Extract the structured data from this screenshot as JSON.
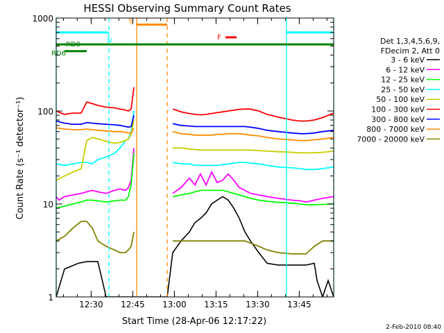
{
  "chart_data": {
    "type": "line",
    "title": "HESSI Observing Summary Count Rates",
    "xlabel": "Start Time (28-Apr-06 12:17:22)",
    "ylabel": "Count Rate (s⁻¹ detector⁻¹)",
    "x_unit": "minutes after 12:17:22",
    "xlim": [
      0,
      100
    ],
    "ylim": [
      1,
      1000
    ],
    "y_scale": "log",
    "x_ticks": [
      {
        "x": 12.6,
        "label": "12:30"
      },
      {
        "x": 27.6,
        "label": "12:45"
      },
      {
        "x": 42.6,
        "label": "13:00"
      },
      {
        "x": 57.6,
        "label": "13:15"
      },
      {
        "x": 72.6,
        "label": "13:30"
      },
      {
        "x": 87.6,
        "label": "13:45"
      }
    ],
    "y_ticks": [
      {
        "y": 1,
        "label": "1"
      },
      {
        "y": 10,
        "label": "10"
      },
      {
        "y": 100,
        "label": "100"
      },
      {
        "y": 1000,
        "label": "1000"
      }
    ],
    "legend_header": [
      "Det 1,3,4,5,6,9,",
      "FDecim 2, Att 0"
    ],
    "legend_position": "right",
    "series": [
      {
        "name": "3 - 6 keV",
        "color": "#000000",
        "x": [
          0,
          3,
          8,
          11,
          13,
          15,
          18,
          21,
          23,
          25,
          26,
          27,
          28,
          29,
          34,
          37,
          40,
          42,
          45,
          48,
          50,
          52,
          54,
          56,
          58,
          60,
          62,
          64,
          66,
          68,
          70,
          73,
          76,
          80,
          85,
          88,
          90,
          93,
          94,
          96,
          98,
          100
        ],
        "y": [
          1,
          2,
          2.3,
          2.4,
          2.4,
          2.4,
          1,
          1,
          1,
          1,
          1,
          1,
          1,
          1,
          1,
          1,
          1,
          3,
          4,
          5,
          6.3,
          7,
          8,
          10,
          11,
          12,
          11,
          9,
          7,
          5,
          4,
          3,
          2.3,
          2.2,
          2.2,
          2.2,
          2.2,
          2.3,
          1.5,
          1,
          1.5,
          1
        ]
      },
      {
        "name": "6 - 12 keV",
        "color": "#ff00ff",
        "x": [
          0,
          1,
          3,
          6,
          9,
          11,
          13,
          15,
          18,
          21,
          23,
          25,
          26,
          27,
          28,
          29,
          34,
          37,
          40,
          42,
          45,
          48,
          50,
          52,
          54,
          56,
          58,
          60,
          62,
          64,
          66,
          68,
          70,
          73,
          76,
          80,
          85,
          88,
          90,
          93,
          96,
          100
        ],
        "y": [
          12,
          11,
          12,
          12.5,
          13,
          13.5,
          14,
          13.5,
          13,
          14,
          14.5,
          14,
          15,
          18,
          40,
          0,
          0,
          0,
          0,
          13,
          15,
          19,
          16,
          21,
          16,
          22,
          17,
          18,
          21,
          18,
          15,
          14,
          13,
          12.5,
          12,
          11.5,
          11,
          10.8,
          10.5,
          11,
          11.5,
          12
        ]
      },
      {
        "name": "12 - 25 keV",
        "color": "#00ff00",
        "x": [
          0,
          3,
          6,
          9,
          11,
          13,
          15,
          18,
          21,
          23,
          25,
          26,
          27,
          28,
          29,
          34,
          37,
          40,
          42,
          45,
          48,
          50,
          52,
          54,
          56,
          58,
          60,
          62,
          64,
          66,
          68,
          70,
          73,
          76,
          80,
          85,
          88,
          90,
          93,
          96,
          100
        ],
        "y": [
          9,
          9.5,
          10,
          10.5,
          11,
          11,
          10.8,
          10.5,
          10.8,
          11,
          11,
          12,
          16,
          35,
          0,
          0,
          0,
          0,
          12,
          12.5,
          13,
          13.5,
          14,
          14,
          14,
          14,
          14,
          13.5,
          13,
          12.5,
          12,
          11.5,
          11,
          10.7,
          10.4,
          10.2,
          10,
          9.8,
          9.8,
          9.9,
          10
        ]
      },
      {
        "name": "25 - 50 keV",
        "color": "#00ffff",
        "x": [
          0,
          3,
          6,
          9,
          11,
          13,
          15,
          18,
          21,
          23,
          25,
          26,
          27,
          28,
          29,
          34,
          37,
          40,
          42,
          45,
          48,
          50,
          52,
          54,
          56,
          58,
          60,
          62,
          64,
          66,
          68,
          70,
          73,
          76,
          80,
          85,
          88,
          90,
          93,
          96,
          100
        ],
        "y": [
          27,
          26,
          27,
          28,
          28,
          27,
          30,
          32,
          35,
          40,
          48,
          50,
          60,
          100,
          0,
          0,
          0,
          0,
          28,
          27,
          27,
          26,
          26,
          26,
          26,
          26,
          26.5,
          27,
          27.5,
          28,
          28,
          27.5,
          27,
          26,
          25,
          24.5,
          24,
          23.5,
          23.5,
          24,
          25
        ]
      },
      {
        "name": "50 - 100 keV",
        "color": "#cccc00",
        "x": [
          0,
          3,
          6,
          9,
          11,
          13,
          15,
          18,
          21,
          23,
          25,
          26,
          27,
          28,
          29,
          34,
          37,
          40,
          42,
          45,
          48,
          50,
          52,
          54,
          56,
          58,
          60,
          62,
          64,
          66,
          68,
          70,
          73,
          76,
          80,
          85,
          88,
          90,
          93,
          96,
          100
        ],
        "y": [
          18,
          20,
          22,
          24,
          48,
          52,
          50,
          47,
          45,
          46,
          48,
          50,
          56,
          80,
          0,
          0,
          0,
          0,
          40,
          40,
          39,
          38.5,
          38,
          38,
          38,
          38,
          38,
          38,
          38,
          38,
          38,
          38,
          37.5,
          37,
          36.5,
          36,
          35.5,
          35.5,
          35.5,
          36,
          37
        ]
      },
      {
        "name": "100 - 300 keV",
        "color": "#ff0000",
        "x": [
          0,
          3,
          6,
          9,
          11,
          13,
          15,
          18,
          21,
          23,
          25,
          26,
          27,
          28,
          29,
          34,
          37,
          40,
          42,
          45,
          48,
          50,
          52,
          54,
          56,
          58,
          60,
          62,
          64,
          66,
          68,
          70,
          73,
          76,
          80,
          85,
          88,
          90,
          93,
          96,
          100
        ],
        "y": [
          100,
          92,
          95,
          95,
          125,
          120,
          115,
          110,
          108,
          105,
          102,
          100,
          105,
          180,
          0,
          0,
          0,
          0,
          105,
          98,
          94,
          92,
          91,
          92,
          94,
          96,
          98,
          100,
          102,
          104,
          105,
          105,
          100,
          92,
          86,
          80,
          78,
          78,
          80,
          85,
          95
        ]
      },
      {
        "name": "300 - 800 keV",
        "color": "#0000ff",
        "x": [
          0,
          3,
          6,
          9,
          11,
          13,
          15,
          18,
          21,
          23,
          25,
          26,
          27,
          28,
          29,
          34,
          37,
          40,
          42,
          45,
          48,
          50,
          52,
          54,
          56,
          58,
          60,
          62,
          64,
          66,
          68,
          70,
          73,
          76,
          80,
          85,
          88,
          90,
          93,
          96,
          100
        ],
        "y": [
          78,
          74,
          72,
          72,
          75,
          74,
          73,
          72,
          71,
          70,
          68,
          67,
          68,
          90,
          0,
          0,
          0,
          0,
          73,
          70,
          69,
          68,
          68,
          68,
          68,
          68,
          68,
          68,
          68,
          68,
          68,
          67,
          65,
          62,
          60,
          58,
          57,
          57,
          58,
          60,
          62
        ]
      },
      {
        "name": "800 - 7000 keV",
        "color": "#ff8c00",
        "x": [
          0,
          3,
          6,
          9,
          11,
          13,
          15,
          18,
          21,
          23,
          25,
          26,
          27,
          28,
          29,
          34,
          37,
          40,
          42,
          45,
          48,
          50,
          52,
          54,
          56,
          58,
          60,
          62,
          64,
          66,
          68,
          70,
          73,
          76,
          80,
          85,
          88,
          90,
          93,
          96,
          100
        ],
        "y": [
          66,
          64,
          63,
          63,
          64,
          63,
          62,
          61,
          60,
          60,
          59,
          58,
          58,
          65,
          0,
          0,
          0,
          0,
          60,
          57,
          56,
          55,
          55,
          55,
          55,
          56,
          56,
          57,
          57,
          57,
          56,
          55,
          54,
          52,
          50,
          49,
          48,
          48,
          49,
          50,
          52
        ]
      },
      {
        "name": "7000 - 20000 keV",
        "color": "#808000",
        "x": [
          0,
          3,
          6,
          9,
          11,
          13,
          15,
          18,
          21,
          23,
          25,
          26,
          27,
          28,
          29,
          34,
          37,
          40,
          42,
          45,
          48,
          50,
          52,
          54,
          56,
          58,
          60,
          62,
          64,
          66,
          68,
          70,
          73,
          76,
          80,
          85,
          88,
          90,
          93,
          96,
          100
        ],
        "y": [
          4,
          4.5,
          5.5,
          6.5,
          6.5,
          5.5,
          4,
          3.5,
          3.2,
          3,
          3,
          3.2,
          3.5,
          5,
          0,
          0,
          0,
          0,
          4,
          4,
          4,
          4,
          4,
          4,
          4,
          4,
          4,
          4,
          4,
          4,
          4,
          3.8,
          3.5,
          3.2,
          3,
          2.9,
          2.9,
          2.9,
          3.5,
          4,
          4
        ]
      }
    ],
    "annotations": [
      {
        "label": "N",
        "color": "#00ffff",
        "x_start": 0,
        "x_end": 19,
        "y": 700
      },
      {
        "label": "",
        "color": "#00ffff",
        "x_start": 83,
        "x_end": 100,
        "y": 700
      },
      {
        "label": "S",
        "color": "#ff8c00",
        "x_start": 29,
        "x_end": 40,
        "y": 850
      },
      {
        "label": "F",
        "color": "#ff0000",
        "x_start": 61,
        "x_end": 65,
        "y": 620
      },
      {
        "label": "RD0",
        "color": "#008000",
        "x_start": 0,
        "x_end": 100,
        "y": 520
      },
      {
        "label": "RD6",
        "color": "#008000",
        "x_start": 3,
        "x_end": 11,
        "y": 440
      }
    ],
    "event_markers": [
      {
        "x": 0,
        "color": "#00ffff",
        "style": "solid"
      },
      {
        "x": 19,
        "color": "#00ffff",
        "style": "dashed"
      },
      {
        "x": 29,
        "color": "#ff8c00",
        "style": "solid"
      },
      {
        "x": 40,
        "color": "#ff8c00",
        "style": "dashed"
      },
      {
        "x": 83,
        "color": "#00ffff",
        "style": "solid"
      },
      {
        "x": 100,
        "color": "#00ffff",
        "style": "dashed"
      }
    ],
    "footer": "2-Feb-2010 08:40"
  }
}
